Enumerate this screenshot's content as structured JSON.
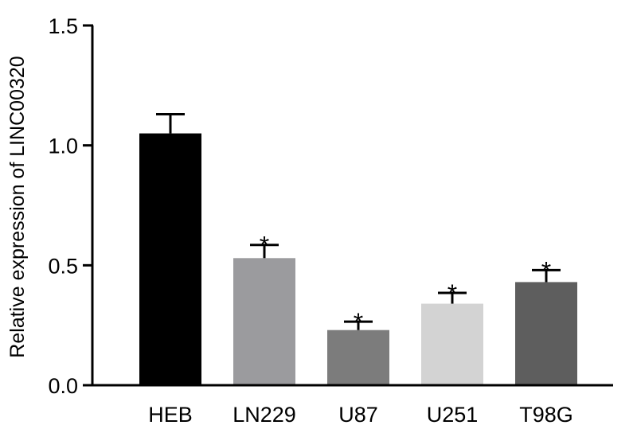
{
  "chart_data": {
    "type": "bar",
    "title": "",
    "xlabel": "",
    "ylabel": "Relative expression of LINC00320",
    "ylim": [
      0,
      1.5
    ],
    "yticks": [
      0.0,
      0.5,
      1.0,
      1.5
    ],
    "ytick_labels": [
      "0.0",
      "0.5",
      "1.0",
      "1.5"
    ],
    "categories": [
      "HEB",
      "LN229",
      "U87",
      "U251",
      "T98G"
    ],
    "values": [
      1.05,
      0.53,
      0.23,
      0.34,
      0.43
    ],
    "errors": [
      0.08,
      0.055,
      0.035,
      0.045,
      0.05
    ],
    "significance": [
      "",
      "*",
      "*",
      "*",
      "*"
    ],
    "colors": [
      "#000000",
      "#9b9b9e",
      "#7c7c7c",
      "#d3d3d3",
      "#5e5e5e"
    ],
    "grid": false,
    "legend": "none"
  }
}
